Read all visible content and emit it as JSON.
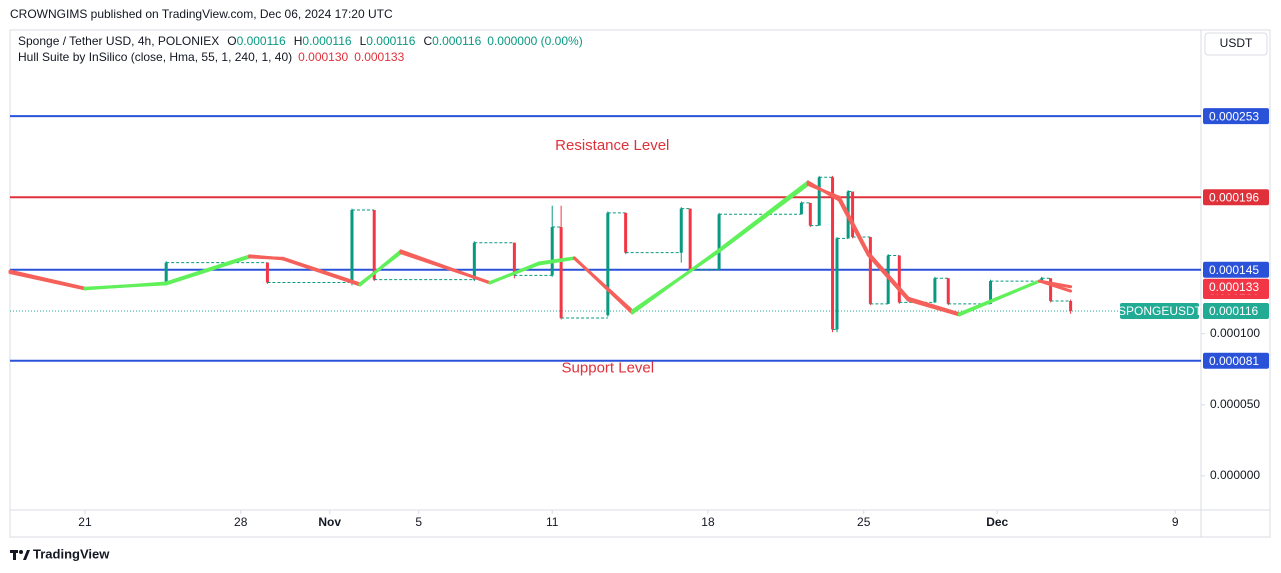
{
  "header": {
    "published": "CROWNGIMS published on TradingView.com, Dec 06, 2024 17:20 UTC",
    "footer": "TradingView",
    "currency_button": "USDT"
  },
  "chart_data": {
    "type": "candlestick",
    "symbol": "Sponge / Tether USD, 4h, POLONIEX",
    "ohlc": [
      {
        "key": "O",
        "label": "0.000116"
      },
      {
        "key": "H",
        "label": "0.000116"
      },
      {
        "key": "L",
        "label": "0.000116"
      },
      {
        "key": "C",
        "label": "0.000116"
      }
    ],
    "change": "0.000000 (0.00%)",
    "xlim": [
      17.63,
      71.16
    ],
    "xticks": [
      {
        "value": 21,
        "label": "21"
      },
      {
        "value": 28,
        "label": "28"
      },
      {
        "value": 32,
        "label": "Nov"
      },
      {
        "value": 36,
        "label": "5"
      },
      {
        "value": 42,
        "label": "11"
      },
      {
        "value": 49,
        "label": "18"
      },
      {
        "value": 56,
        "label": "25"
      },
      {
        "value": 62,
        "label": "Dec"
      },
      {
        "value": 70,
        "label": "9"
      }
    ],
    "ylim": [
      -2.4e-05,
      0.0003136
    ],
    "yticks": [
      {
        "value": 0,
        "label": "0.000000"
      },
      {
        "value": 5e-05,
        "label": "0.000050"
      },
      {
        "value": 0.0001,
        "label": "0.000100"
      }
    ],
    "up_color": "#089981",
    "down_color": "#f23645",
    "candles": {
      "x": [
        24.65,
        29.2,
        33.0,
        34.0,
        38.5,
        40.3,
        42.0,
        42.4,
        44.5,
        45.3,
        47.8,
        48.2,
        49.5,
        53.2,
        53.6,
        54.0,
        54.6,
        54.8,
        55.3,
        55.5,
        56.3,
        57.1,
        57.6,
        59.2,
        59.8,
        61.7,
        64.0,
        64.4,
        65.3
      ],
      "open": [
        0.000136,
        0.00015,
        0.000136,
        0.000187,
        0.000138,
        0.000164,
        0.000141,
        0.000175,
        0.000113,
        0.000185,
        0.000157,
        0.000188,
        0.000145,
        0.000184,
        0.000192,
        0.000176,
        0.00021,
        0.000103,
        0.000167,
        0.0002,
        0.000168,
        0.000121,
        0.000155,
        0.000122,
        0.000139,
        0.000121,
        0.000137,
        0.000139,
        0.000123
      ],
      "high": [
        0.000151,
        0.00015,
        0.000188,
        0.000187,
        0.000165,
        0.000164,
        0.00019,
        0.00019,
        0.000186,
        0.000185,
        0.000189,
        0.000188,
        0.000185,
        0.000193,
        0.000192,
        0.000211,
        0.000211,
        0.000168,
        0.000201,
        0.0002,
        0.000168,
        0.000156,
        0.000155,
        0.00014,
        0.000139,
        0.000138,
        0.00014,
        0.000139,
        0.000124
      ],
      "low": [
        0.000136,
        0.000135,
        0.000134,
        0.000137,
        0.000137,
        0.000139,
        0.00014,
        0.00011,
        0.000112,
        0.000156,
        0.00015,
        0.000144,
        0.000145,
        0.000184,
        0.000175,
        0.000176,
        0.000101,
        0.000101,
        0.000167,
        0.000167,
        0.00012,
        0.000121,
        0.000121,
        0.000122,
        0.00012,
        0.000121,
        0.000137,
        0.000122,
        0.000114
      ],
      "close": [
        0.00015,
        0.000136,
        0.000187,
        0.000138,
        0.000164,
        0.000141,
        0.000175,
        0.000111,
        0.000185,
        0.000157,
        0.000188,
        0.000145,
        0.000184,
        0.000192,
        0.000176,
        0.00021,
        0.000103,
        0.000167,
        0.0002,
        0.000168,
        0.000121,
        0.000155,
        0.000122,
        0.000139,
        0.000121,
        0.000137,
        0.000139,
        0.000123,
        0.000116
      ]
    },
    "hull": {
      "label": "Hull Suite by InSilico (close, Hma, 55, 1, 240, 1, 40)",
      "x": [
        17.63,
        21,
        24.65,
        28.4,
        29.9,
        33.36,
        35.2,
        39.2,
        41.4,
        43.0,
        45.6,
        49.5,
        53.5,
        54.9,
        56.2,
        58.0,
        60.3,
        63.9,
        65.3
      ],
      "mhull": [
        0.000143,
        0.0001315,
        0.0001357,
        0.0001547,
        0.0001526,
        0.0001343,
        0.0001582,
        0.0001357,
        0.0001497,
        0.0001533,
        0.0001146,
        0.0001589,
        0.0002067,
        0.000194,
        0.0001554,
        0.0001237,
        0.0001132,
        0.0001371,
        0.00013
      ],
      "shull": [
        0.000144,
        0.000132,
        0.000135,
        0.000154,
        0.000153,
        0.000135,
        0.000157,
        0.000136,
        0.000149,
        0.000153,
        0.000116,
        0.000158,
        0.000205,
        0.000196,
        0.000157,
        0.000125,
        0.000114,
        0.000137,
        0.000133
      ],
      "last": [
        {
          "value": 0.00013,
          "label": "0.000130"
        },
        {
          "value": 0.000133,
          "label": "0.000133"
        }
      ],
      "up_color": "#5ff05a",
      "down_color": "#f5605a"
    },
    "levels": [
      {
        "value": 0.000253,
        "label": "0.000253",
        "color": "#2a52d9"
      },
      {
        "value": 0.000196,
        "label": "0.000196",
        "color": "#e0313b"
      },
      {
        "value": 0.000145,
        "label": "0.000145",
        "color": "#2a52d9"
      },
      {
        "value": 8.1e-05,
        "label": "0.000081",
        "color": "#2a52d9"
      }
    ],
    "last_price": {
      "value": 0.000116,
      "label": "0.000116",
      "tag": "SPONGEUSDT",
      "color": "#22ab94"
    },
    "annotations": [
      {
        "text": "Resistance Level",
        "x": 44.7,
        "y": 0.000232,
        "color": "#e0313b"
      },
      {
        "text": "Support Level",
        "x": 44.5,
        "y": 7.55e-05,
        "color": "#e0313b"
      }
    ]
  }
}
